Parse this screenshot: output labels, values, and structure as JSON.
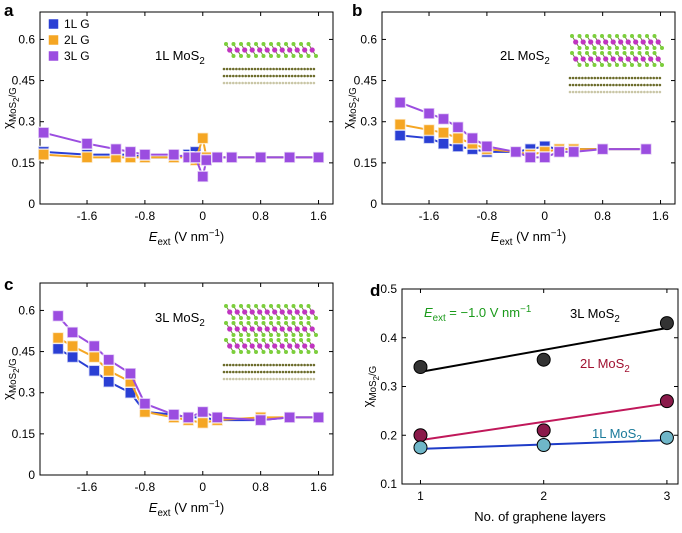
{
  "chart_data": [
    {
      "type": "line",
      "panel_label": "a",
      "annotation": [
        {
          "text": "1L MoS"
        },
        {
          "text": "2",
          "shift": "sub"
        }
      ],
      "xlabel": [
        {
          "text": "E",
          "shift": "it"
        },
        {
          "text": "ext",
          "shift": "sub"
        },
        {
          "text": " (V nm"
        },
        {
          "text": "−1",
          "shift": "sup"
        },
        {
          "text": ")"
        }
      ],
      "ylabel": [
        {
          "text": "χ"
        },
        {
          "text": "MoS",
          "shift": "sub"
        },
        {
          "text": "2",
          "shift": "subsub"
        },
        {
          "text": "/G",
          "shift": "sub"
        }
      ],
      "x": [
        -2.2,
        -1.6,
        -1.2,
        -1.0,
        -0.8,
        -0.4,
        -0.2,
        -0.1,
        0,
        0.05,
        0.2,
        0.4,
        0.8,
        1.2,
        1.6
      ],
      "series": [
        {
          "name": "1L G",
          "color": "#2a3fd4",
          "values": [
            0.19,
            0.18,
            0.18,
            0.18,
            0.17,
            0.17,
            0.18,
            0.19,
            0.17,
            0.16,
            0.17,
            0.17,
            0.17,
            0.17,
            0.17
          ]
        },
        {
          "name": "2L G",
          "color": "#f5a623",
          "values": [
            0.18,
            0.17,
            0.17,
            0.17,
            0.17,
            0.17,
            0.17,
            0.16,
            0.24,
            0.17,
            0.17,
            0.17,
            0.17,
            0.17,
            0.17
          ]
        },
        {
          "name": "3L G",
          "color": "#9b4de0",
          "values": [
            0.26,
            0.22,
            0.2,
            0.19,
            0.18,
            0.18,
            0.17,
            0.17,
            0.1,
            0.16,
            0.17,
            0.17,
            0.17,
            0.17,
            0.17
          ]
        }
      ],
      "xlim": [
        -2.25,
        1.8
      ],
      "xticks": [
        -1.6,
        -0.8,
        0,
        0.8,
        1.6
      ],
      "ylim": [
        0,
        0.7
      ],
      "yticks": [
        0,
        0.15,
        0.3,
        0.45,
        0.6
      ]
    },
    {
      "type": "line",
      "panel_label": "b",
      "annotation": [
        {
          "text": "2L MoS"
        },
        {
          "text": "2",
          "shift": "sub"
        }
      ],
      "xlabel": [
        {
          "text": "E",
          "shift": "it"
        },
        {
          "text": "ext",
          "shift": "sub"
        },
        {
          "text": " (V nm"
        },
        {
          "text": "−1",
          "shift": "sup"
        },
        {
          "text": ")"
        }
      ],
      "ylabel": [
        {
          "text": "χ"
        },
        {
          "text": "MoS",
          "shift": "sub"
        },
        {
          "text": "2",
          "shift": "subsub"
        },
        {
          "text": "/G",
          "shift": "sub"
        }
      ],
      "x": [
        -2.0,
        -1.6,
        -1.4,
        -1.2,
        -1.0,
        -0.8,
        -0.4,
        -0.2,
        0,
        0.2,
        0.4,
        0.8,
        1.4
      ],
      "series": [
        {
          "color": "#2a3fd4",
          "values": [
            0.25,
            0.24,
            0.22,
            0.21,
            0.2,
            0.19,
            0.19,
            0.2,
            0.21,
            0.2,
            0.2,
            0.2,
            0.2
          ]
        },
        {
          "color": "#f5a623",
          "values": [
            0.29,
            0.27,
            0.26,
            0.24,
            0.22,
            0.2,
            0.19,
            0.18,
            0.19,
            0.2,
            0.2,
            0.2,
            0.2
          ]
        },
        {
          "color": "#9b4de0",
          "values": [
            0.37,
            0.33,
            0.31,
            0.28,
            0.24,
            0.21,
            0.19,
            0.17,
            0.17,
            0.19,
            0.19,
            0.2,
            0.2
          ]
        }
      ],
      "xlim": [
        -2.25,
        1.8
      ],
      "xticks": [
        -1.6,
        -0.8,
        0,
        0.8,
        1.6
      ],
      "ylim": [
        0,
        0.7
      ],
      "yticks": [
        0,
        0.15,
        0.3,
        0.45,
        0.6
      ]
    },
    {
      "type": "line",
      "panel_label": "c",
      "annotation": [
        {
          "text": "3L MoS"
        },
        {
          "text": "2",
          "shift": "sub"
        }
      ],
      "xlabel": [
        {
          "text": "E",
          "shift": "it"
        },
        {
          "text": "ext",
          "shift": "sub"
        },
        {
          "text": " (V nm"
        },
        {
          "text": "−1",
          "shift": "sup"
        },
        {
          "text": ")"
        }
      ],
      "ylabel": [
        {
          "text": "χ"
        },
        {
          "text": "MoS",
          "shift": "sub"
        },
        {
          "text": "2",
          "shift": "subsub"
        },
        {
          "text": "/G",
          "shift": "sub"
        }
      ],
      "x": [
        -2.0,
        -1.8,
        -1.5,
        -1.3,
        -1.0,
        -0.8,
        -0.4,
        -0.2,
        0,
        0.2,
        0.8,
        1.2,
        1.6
      ],
      "series": [
        {
          "color": "#2a3fd4",
          "values": [
            0.46,
            0.43,
            0.38,
            0.34,
            0.3,
            0.23,
            0.22,
            0.21,
            0.21,
            0.2,
            0.2,
            0.21,
            0.21
          ]
        },
        {
          "color": "#f5a623",
          "values": [
            0.5,
            0.47,
            0.43,
            0.38,
            0.34,
            0.23,
            0.21,
            0.2,
            0.19,
            0.2,
            0.21,
            0.21,
            0.21
          ]
        },
        {
          "color": "#9b4de0",
          "values": [
            0.58,
            0.52,
            0.47,
            0.42,
            0.37,
            0.26,
            0.22,
            0.21,
            0.23,
            0.21,
            0.2,
            0.21,
            0.21
          ]
        }
      ],
      "xlim": [
        -2.25,
        1.8
      ],
      "xticks": [
        -1.6,
        -0.8,
        0,
        0.8,
        1.6
      ],
      "ylim": [
        0,
        0.7
      ],
      "yticks": [
        0,
        0.15,
        0.3,
        0.45,
        0.6
      ]
    },
    {
      "type": "scatter",
      "panel_label": "d",
      "annotation": [
        {
          "text": "E",
          "shift": "it"
        },
        {
          "text": "ext",
          "shift": "sub"
        },
        {
          "text": " = −1.0 V nm"
        },
        {
          "text": "−1",
          "shift": "sup"
        }
      ],
      "annotation_color": "#1a9a1a",
      "xlabel": [
        {
          "text": "No. of graphene layers"
        }
      ],
      "ylabel": [
        {
          "text": "χ"
        },
        {
          "text": "MoS",
          "shift": "sub"
        },
        {
          "text": "2",
          "shift": "subsub"
        },
        {
          "text": "/G",
          "shift": "sub"
        }
      ],
      "x": [
        1,
        2,
        3
      ],
      "series": [
        {
          "label": [
            {
              "text": "3L MoS"
            },
            {
              "text": "2",
              "shift": "sub"
            }
          ],
          "color": "#000000",
          "marker_color": "#333333",
          "values": [
            0.34,
            0.355,
            0.43
          ],
          "fit": {
            "x": [
              1,
              3
            ],
            "y": [
              0.33,
              0.42
            ]
          }
        },
        {
          "label": [
            {
              "text": "2L MoS"
            },
            {
              "text": "2",
              "shift": "sub"
            }
          ],
          "color": "#c0185a",
          "marker_color": "#8a1a4a",
          "label_color": "#a01030",
          "values": [
            0.2,
            0.21,
            0.27
          ],
          "fit": {
            "x": [
              1,
              3
            ],
            "y": [
              0.19,
              0.265
            ]
          }
        },
        {
          "label": [
            {
              "text": "1L MoS"
            },
            {
              "text": "2",
              "shift": "sub"
            }
          ],
          "color": "#1f3cc8",
          "marker_color": "#6fb6c8",
          "label_color": "#1a7a9a",
          "values": [
            0.175,
            0.18,
            0.195
          ],
          "fit": {
            "x": [
              1,
              3
            ],
            "y": [
              0.172,
              0.19
            ]
          }
        }
      ],
      "xlim": [
        0.85,
        3.09
      ],
      "xticks": [
        1,
        2,
        3
      ],
      "ylim": [
        0.1,
        0.5
      ],
      "yticks": [
        0.1,
        0.2,
        0.3,
        0.4,
        0.5
      ]
    }
  ]
}
